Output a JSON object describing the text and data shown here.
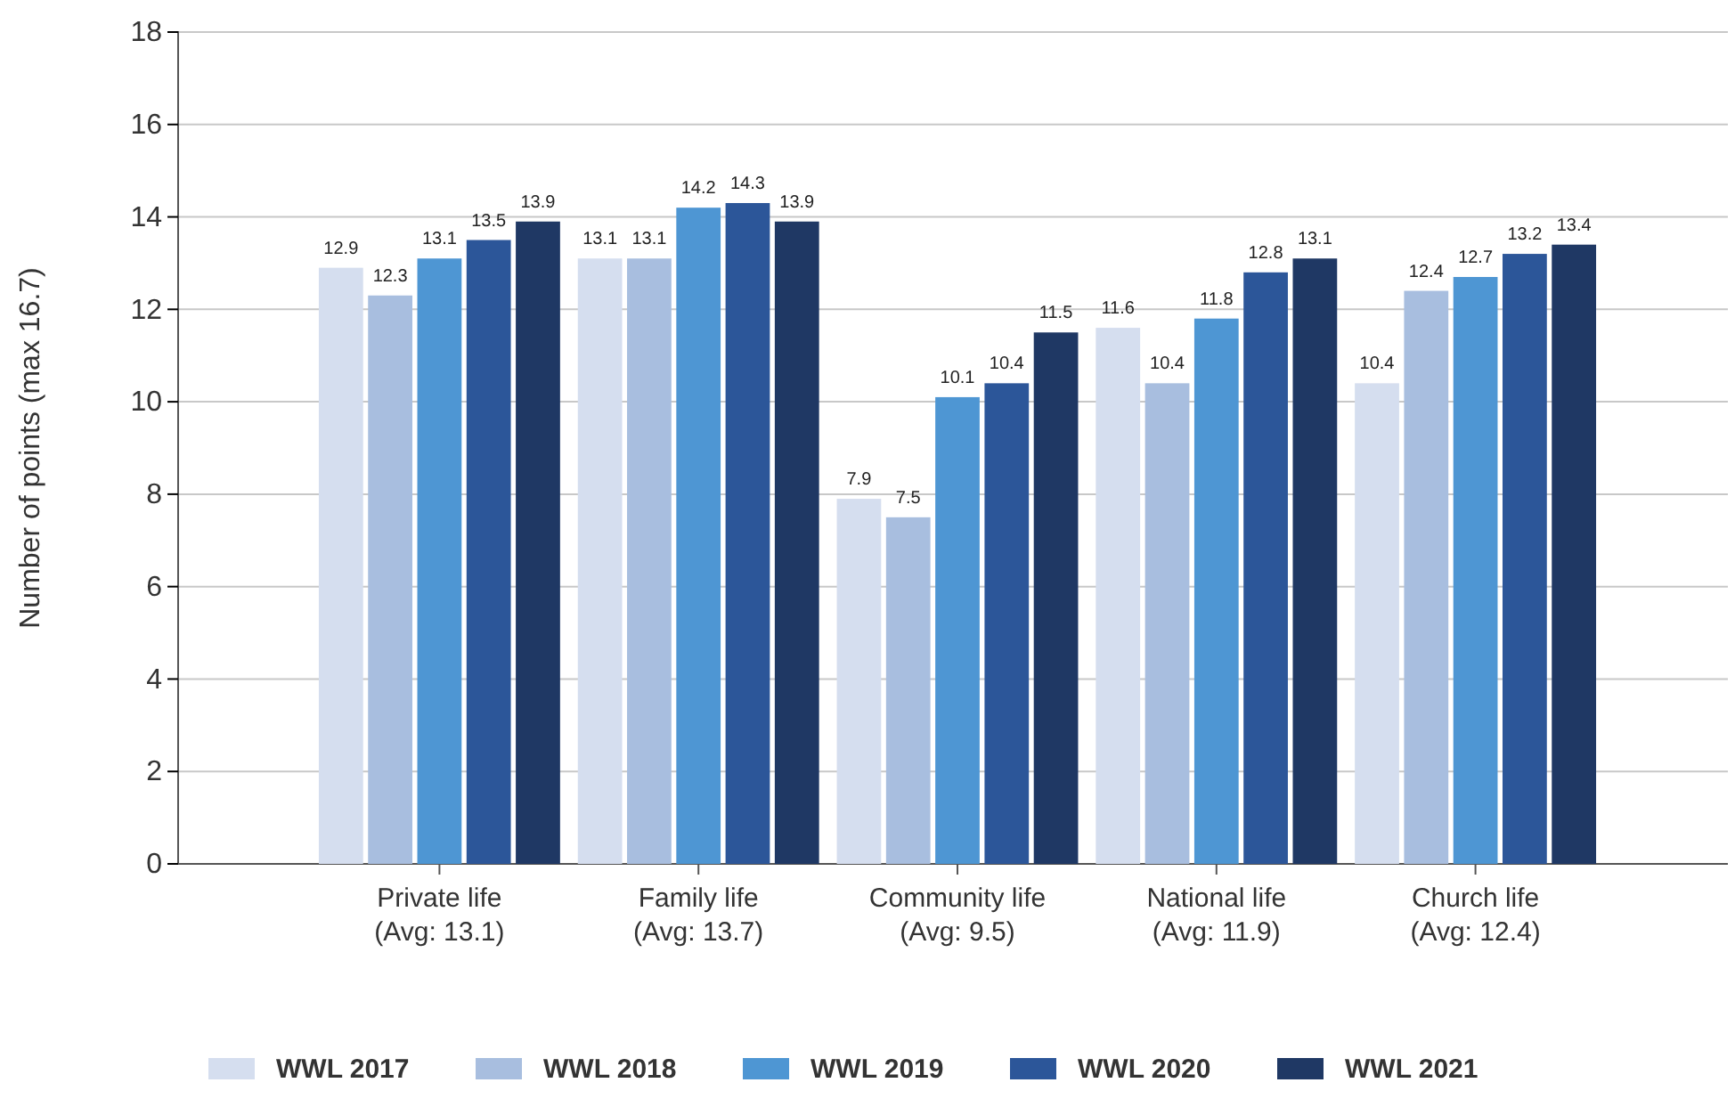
{
  "chart_data": {
    "type": "bar",
    "ylabel": "Number of points (max 16.7)",
    "categories": [
      "Private life\n(Avg: 13.1)",
      "Family life\n(Avg: 13.7)",
      "Community life\n(Avg: 9.5)",
      "National life\n(Avg: 11.9)",
      "Church life\n(Avg: 12.4)"
    ],
    "series": [
      {
        "name": "WWL 2017",
        "color": "#d5deef",
        "values": [
          12.9,
          13.1,
          7.9,
          11.6,
          10.4
        ]
      },
      {
        "name": "WWL 2018",
        "color": "#a8bedf",
        "values": [
          12.3,
          13.1,
          7.5,
          10.4,
          12.4
        ]
      },
      {
        "name": "WWL 2019",
        "color": "#4e96d3",
        "values": [
          13.1,
          14.2,
          10.1,
          11.8,
          12.7
        ]
      },
      {
        "name": "WWL 2020",
        "color": "#2c5699",
        "values": [
          13.5,
          14.3,
          10.4,
          12.8,
          13.2
        ]
      },
      {
        "name": "WWL 2021",
        "color": "#1f3864",
        "values": [
          13.9,
          13.9,
          11.5,
          13.1,
          13.4
        ]
      }
    ],
    "ylim": [
      0,
      18
    ],
    "yticks": [
      0,
      2,
      4,
      6,
      8,
      10,
      12,
      14,
      16,
      18
    ],
    "grid": "y",
    "legend": "bottom",
    "data_labels": true
  }
}
